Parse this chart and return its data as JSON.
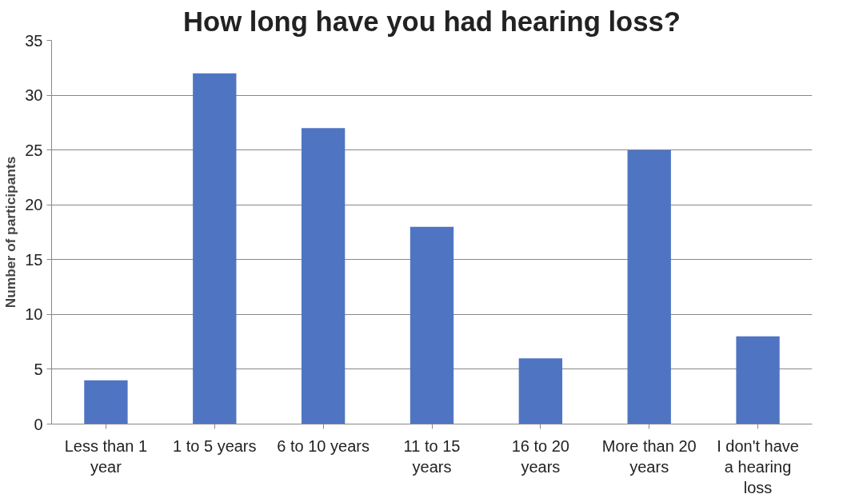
{
  "chart_data": {
    "type": "bar",
    "title": "How long have you had hearing loss?",
    "ylabel": "Number of participants",
    "categories": [
      "Less than 1 year",
      "1 to 5 years",
      "6 to 10 years",
      "11 to 15 years",
      "16 to 20 years",
      "More than 20 years",
      "I don't have a hearing loss"
    ],
    "values": [
      4,
      32,
      27,
      18,
      6,
      25,
      8
    ],
    "color": "#4f75c2",
    "ylim": [
      0,
      35
    ],
    "yticks": [
      0,
      5,
      10,
      15,
      20,
      25,
      30,
      35
    ],
    "grid": "y"
  }
}
